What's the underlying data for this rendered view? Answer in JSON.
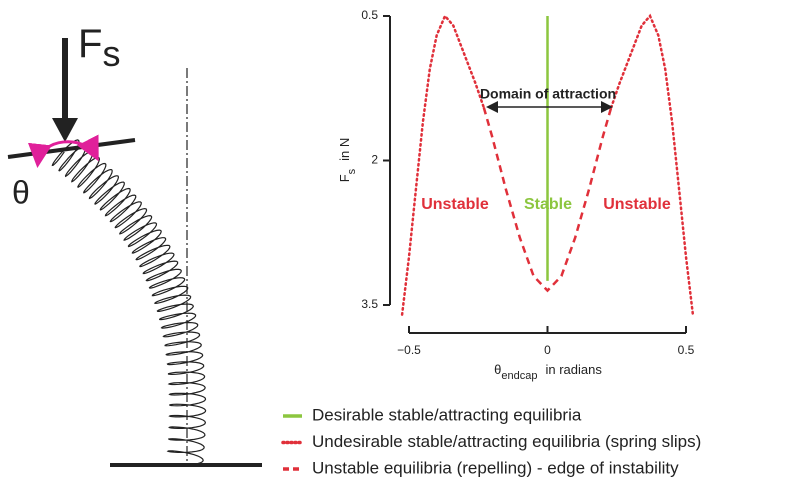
{
  "diagram": {
    "force_label": "F",
    "force_subscript": "s",
    "angle_label": "θ"
  },
  "chart_data": {
    "type": "line",
    "y_label": {
      "main": "F",
      "sub": "s",
      "rest": "in N"
    },
    "x_label": {
      "main": "θ",
      "sub": "endcap",
      "rest": "in radians"
    },
    "xlim": [
      -0.5,
      0.5
    ],
    "xticks": [
      {
        "value": -0.5,
        "label": "−0.5"
      },
      0,
      0.5
    ],
    "ylim": [
      0.5,
      3.5
    ],
    "yticks": [
      0.5,
      2,
      3.5
    ],
    "y_inverted": true,
    "annotations": [
      {
        "text": "Domain of attraction",
        "color": "#222222"
      },
      {
        "text": "Unstable",
        "color": "#e0303a"
      },
      {
        "text": "Stable",
        "color": "#8cc63f"
      },
      {
        "text": "Unstable",
        "color": "#e0303a"
      }
    ],
    "series": [
      {
        "name": "Desirable stable/attracting equilibria",
        "color": "#8cc63f",
        "style": "solid",
        "x": [
          0,
          0
        ],
        "values": [
          0.5,
          3.25
        ]
      },
      {
        "name": "Undesirable stable/attracting equilibria (spring slips)",
        "color": "#e0303a",
        "style": "dotted",
        "x": [
          -0.525,
          -0.5,
          -0.475,
          -0.45,
          -0.425,
          -0.4,
          -0.37,
          -0.34,
          -0.3,
          -0.26,
          -0.23,
          null,
          0.23,
          0.26,
          0.3,
          0.34,
          0.37,
          0.4,
          0.425,
          0.45,
          0.475,
          0.5,
          0.525
        ],
        "values": [
          3.6,
          3.0,
          2.3,
          1.6,
          1.05,
          0.7,
          0.5,
          0.6,
          0.9,
          1.2,
          1.45,
          null,
          1.45,
          1.2,
          0.9,
          0.6,
          0.5,
          0.7,
          1.05,
          1.6,
          2.3,
          3.0,
          3.6
        ]
      },
      {
        "name": "Unstable equilibria (repelling) - edge of instability",
        "color": "#e0303a",
        "style": "dashed",
        "x": [
          -0.23,
          -0.2,
          -0.15,
          -0.1,
          -0.05,
          0,
          0.05,
          0.1,
          0.15,
          0.2,
          0.23
        ],
        "values": [
          1.45,
          1.75,
          2.3,
          2.8,
          3.2,
          3.35,
          3.2,
          2.8,
          2.3,
          1.75,
          1.45
        ]
      }
    ]
  }
}
